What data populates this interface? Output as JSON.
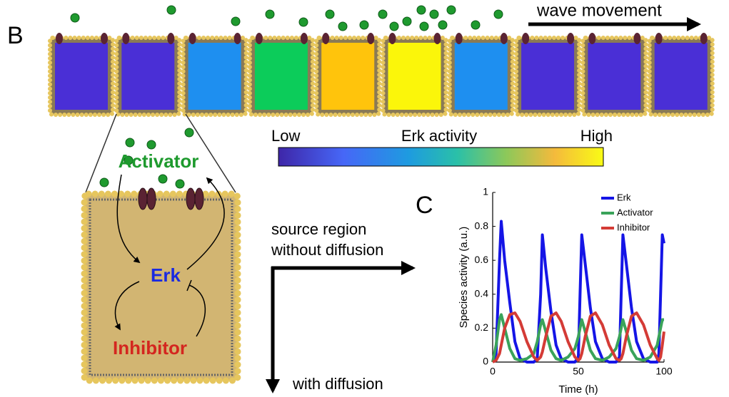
{
  "panel_b": {
    "label": "B",
    "wave_label": "wave movement",
    "colorbar": {
      "low": "Low",
      "title": "Erk activity",
      "high": "High"
    },
    "species": {
      "activator": "Activator",
      "erk": "Erk",
      "inhibitor": "Inhibitor"
    },
    "axes": {
      "source_line1": "source region",
      "source_line2": "without diffusion",
      "diffusion": "with diffusion"
    }
  },
  "panel_c_label": "C",
  "chart_data": {
    "type": "line",
    "x_label": "Time (h)",
    "y_label": "Species activity (a.u.)",
    "x": [
      0,
      2,
      4,
      5,
      7,
      10,
      13,
      16,
      20,
      24,
      26,
      28,
      29,
      31,
      34,
      37,
      40,
      44,
      48,
      50,
      51,
      52,
      54,
      57,
      60,
      64,
      68,
      72,
      74,
      75,
      76,
      78,
      81,
      84,
      88,
      92,
      96,
      97,
      98,
      99,
      100
    ],
    "series": [
      {
        "name": "Erk",
        "color": "#1515e6",
        "values": [
          0,
          0.05,
          0.6,
          0.83,
          0.6,
          0.35,
          0.12,
          0.02,
          0,
          0,
          0.02,
          0.4,
          0.75,
          0.55,
          0.3,
          0.1,
          0.02,
          0,
          0,
          0.03,
          0.4,
          0.75,
          0.58,
          0.32,
          0.12,
          0.02,
          0,
          0,
          0.03,
          0.4,
          0.75,
          0.58,
          0.32,
          0.12,
          0.02,
          0,
          0,
          0.05,
          0.4,
          0.75,
          0.7
        ]
      },
      {
        "name": "Activator",
        "color": "#3aa35a",
        "values": [
          0,
          0.1,
          0.25,
          0.28,
          0.2,
          0.08,
          0.02,
          0.01,
          0.02,
          0.05,
          0.12,
          0.22,
          0.25,
          0.18,
          0.07,
          0.02,
          0.01,
          0.03,
          0.08,
          0.15,
          0.2,
          0.25,
          0.18,
          0.07,
          0.02,
          0.01,
          0.03,
          0.08,
          0.15,
          0.2,
          0.25,
          0.18,
          0.07,
          0.02,
          0.01,
          0.03,
          0.1,
          0.15,
          0.2,
          0.25,
          0.25
        ]
      },
      {
        "name": "Inhibitor",
        "color": "#d43b36",
        "values": [
          0,
          0.01,
          0.05,
          0.1,
          0.2,
          0.28,
          0.29,
          0.24,
          0.12,
          0.03,
          0.01,
          0.03,
          0.06,
          0.15,
          0.27,
          0.29,
          0.24,
          0.12,
          0.03,
          0.01,
          0.02,
          0.05,
          0.15,
          0.27,
          0.29,
          0.22,
          0.1,
          0.02,
          0.01,
          0.02,
          0.05,
          0.15,
          0.27,
          0.29,
          0.22,
          0.1,
          0.02,
          0.01,
          0.03,
          0.1,
          0.18
        ]
      }
    ],
    "xlim": [
      0,
      100
    ],
    "xticks": [
      0,
      50,
      100
    ],
    "ylim": [
      0,
      1
    ],
    "yticks": [
      0,
      0.2,
      0.4,
      0.6,
      0.8,
      1
    ],
    "legend": "upper right"
  }
}
